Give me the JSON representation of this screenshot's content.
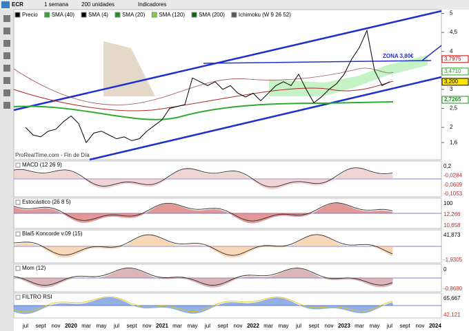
{
  "toolbar": {
    "symbol": "ECR",
    "timeframe": "1 semana",
    "units": "200 unidades",
    "indicators": "Indicadores"
  },
  "overlays": [
    "SMA (40)",
    "SMA (4)",
    "SMA (20)",
    "SMA (120)",
    "SMA (200)",
    "Ichimoku (W 9 26 52)"
  ],
  "chart_data": {
    "type": "line",
    "series": [
      {
        "name": "Precio",
        "color": "#000000",
        "values": [
          2.0,
          1.8,
          1.75,
          1.9,
          1.95,
          2.15,
          2.3,
          2.1,
          1.6,
          1.85,
          1.9,
          1.8,
          1.7,
          1.75,
          1.65,
          1.7,
          1.9,
          2.05,
          2.2,
          2.5,
          2.55,
          2.6,
          3.3,
          3.2,
          3.1,
          3.2,
          3.0,
          3.1,
          2.9,
          2.8,
          2.9,
          2.7,
          2.9,
          3.1,
          3.2,
          3.1,
          3.4,
          3.0,
          2.65,
          2.8,
          3.0,
          3.15,
          3.4,
          3.8,
          4.1,
          4.55,
          3.5,
          3.1,
          3.2
        ]
      }
    ],
    "ylim": [
      1.15,
      5.1
    ],
    "yticks": [
      5,
      {
        "value": 4.5,
        "label": "4,5"
      },
      4,
      3,
      {
        "value": 2.5,
        "label": "2,5"
      },
      2,
      {
        "value": 1.6,
        "label": "1,6"
      }
    ],
    "price_tags": [
      {
        "value": 3.7975,
        "label": "3,7975",
        "color": "#c00000"
      },
      {
        "value": 3.471,
        "label": "3,4710",
        "color": "#2e9e2e"
      },
      {
        "value": 3.2,
        "label": "3,200",
        "color": "#000000"
      },
      {
        "value": 2.7265,
        "label": "2,7265",
        "color": "#1f8f1f"
      }
    ],
    "annotation": "ZONA 3,80€",
    "watermark": "ProRealTime.com - Fin de Día",
    "x_labels": [
      "jul",
      "sept",
      "nov",
      "2020",
      "mar",
      "may",
      "jul",
      "sept",
      "nov",
      "2021",
      "mar",
      "may",
      "jul",
      "sept",
      "nov",
      "2022",
      "mar",
      "may",
      "jul",
      "sept",
      "nov",
      "2023",
      "mar",
      "may",
      "jul",
      "sept",
      "nov",
      "2024"
    ]
  },
  "panels": [
    {
      "title": "MACD (12 26 9)",
      "labels": [
        "0,2",
        "-0,0284",
        "-0,0609",
        "-0,1053"
      ]
    },
    {
      "title": "Estocástico (26 8 5)",
      "labels": [
        "100",
        "12,266",
        "10,658"
      ]
    },
    {
      "title": "Blai5 Koncorde v.09 (15)",
      "labels": [
        "41,873",
        "-1,9305"
      ]
    },
    {
      "title": "Mom (12)",
      "labels": [
        "0",
        "-0,8680"
      ]
    },
    {
      "title": "FILTRO RSI",
      "labels": [
        "65,667",
        "42,121"
      ]
    }
  ]
}
